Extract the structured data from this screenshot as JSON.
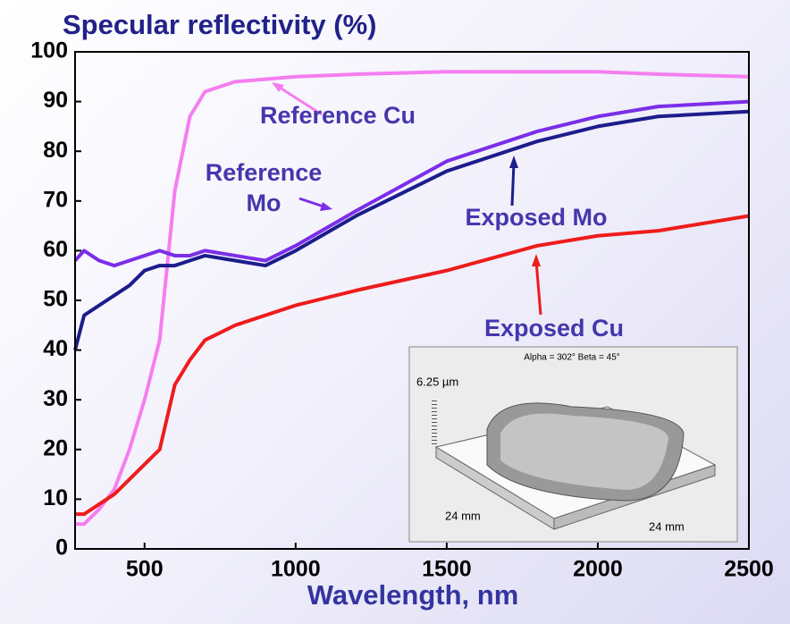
{
  "chart_data": {
    "type": "line",
    "title": "Specular reflectivity (%)",
    "x_label": "Wavelength, nm",
    "x": [
      270,
      300,
      350,
      400,
      450,
      500,
      550,
      600,
      650,
      700,
      800,
      900,
      1000,
      1200,
      1500,
      1800,
      2000,
      2200,
      2500
    ],
    "series": [
      {
        "name": "Reference Cu",
        "color": "#f47ef0",
        "values": [
          5,
          5,
          8,
          12,
          20,
          30,
          42,
          72,
          87,
          92,
          94,
          94.5,
          95,
          95.5,
          96,
          96,
          96,
          95.5,
          95
        ]
      },
      {
        "name": "Reference Mo",
        "color": "#7b2ee8",
        "values": [
          58,
          60,
          58,
          57,
          58,
          59,
          60,
          59,
          59,
          60,
          59,
          58,
          61,
          68,
          78,
          84,
          87,
          89,
          90
        ]
      },
      {
        "name": "Exposed Mo",
        "color": "#1c1c8c",
        "values": [
          40,
          47,
          49,
          51,
          53,
          56,
          57,
          57,
          58,
          59,
          58,
          57,
          60,
          67,
          76,
          82,
          85,
          87,
          88
        ]
      },
      {
        "name": "Exposed Cu",
        "color": "#ee1c1c",
        "values": [
          7,
          7,
          9,
          11,
          14,
          17,
          20,
          33,
          38,
          42,
          45,
          47,
          49,
          52,
          56,
          61,
          63,
          64,
          67
        ]
      }
    ],
    "xlim": [
      270,
      2500
    ],
    "xticks": [
      500,
      1000,
      1500,
      2000,
      2500
    ],
    "ylim": [
      0,
      100
    ],
    "yticks": [
      0,
      10,
      20,
      30,
      40,
      50,
      60,
      70,
      80,
      90,
      100
    ]
  },
  "inset": {
    "title": "Alpha = 302°  Beta = 45°",
    "z_label": "6.25 µm",
    "x_label": "24 mm",
    "y_label": "24 mm"
  }
}
